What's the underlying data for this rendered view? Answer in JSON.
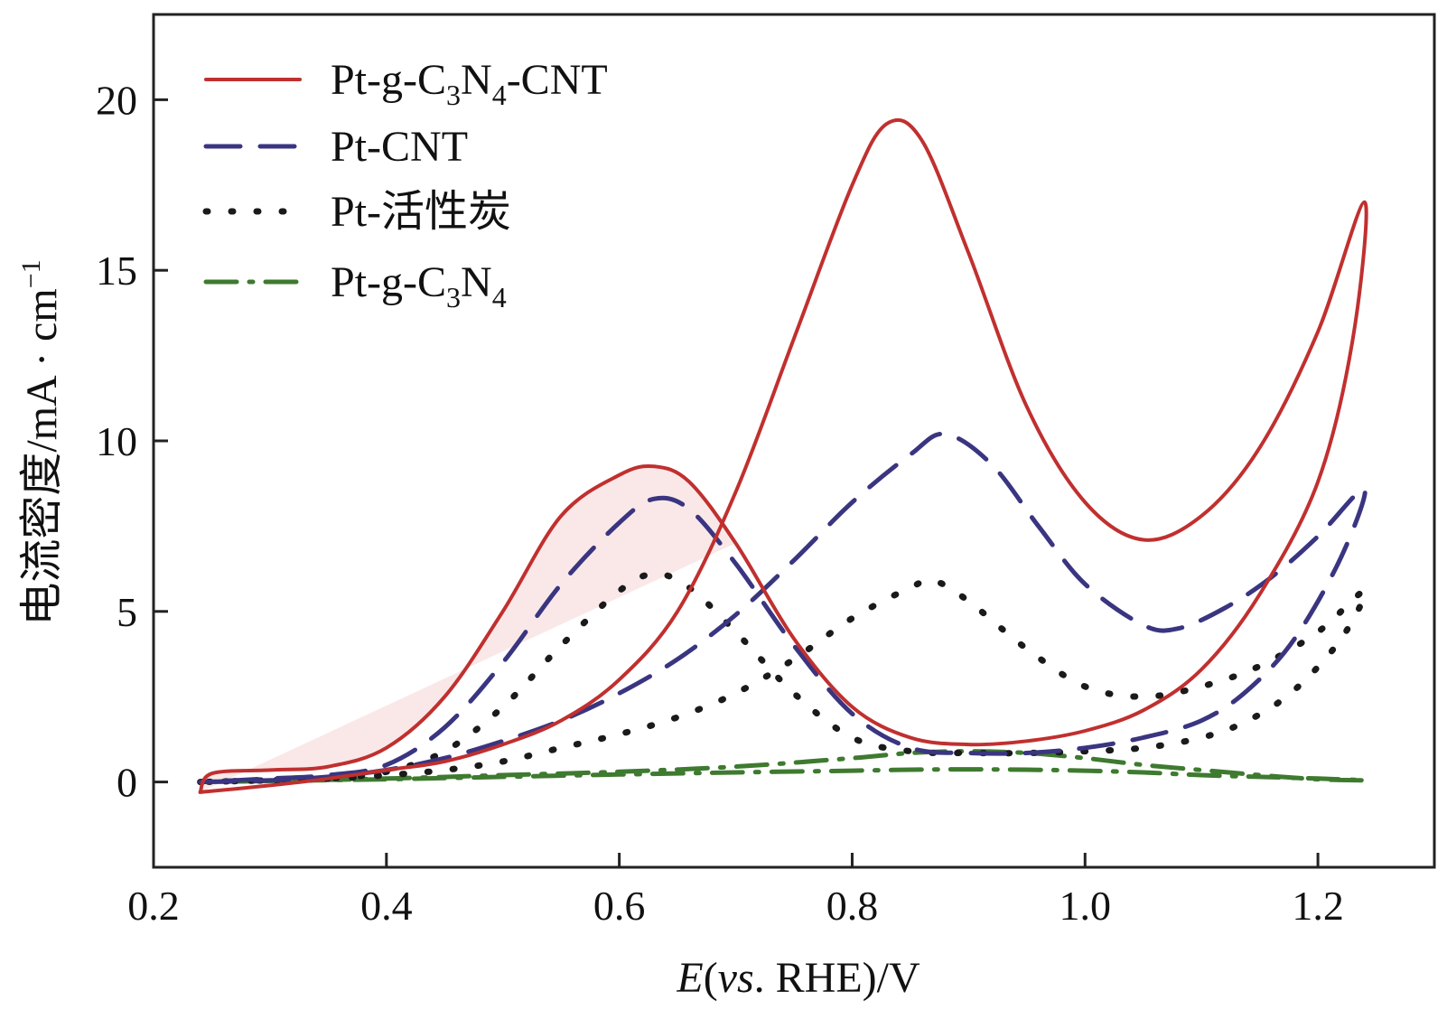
{
  "chart_data": {
    "type": "line",
    "title": "",
    "xlabel": {
      "italic": "E",
      "rest": "(",
      "italic2": "vs",
      "rest2": ". RHE)/V"
    },
    "ylabel": {
      "main": "电流密度/mA · cm",
      "sup": "−1"
    },
    "xlim": [
      0.2,
      1.3
    ],
    "ylim": [
      -2.5,
      22.5
    ],
    "x_ticks": [
      0.2,
      0.4,
      0.6,
      0.8,
      1.0,
      1.2
    ],
    "x_tick_labels": [
      "0.2",
      "0.4",
      "0.6",
      "0.8",
      "1.0",
      "1.2"
    ],
    "y_ticks": [
      0,
      5,
      10,
      15,
      20
    ],
    "y_tick_labels": [
      "0",
      "5",
      "10",
      "15",
      "20"
    ],
    "grid": false,
    "legend_position": "top-left",
    "series": [
      {
        "name": "Pt-g-C3N4-CNT",
        "label_parts": [
          [
            "Pt-g-C",
            ""
          ],
          [
            "3",
            "sub"
          ],
          [
            "N",
            ""
          ],
          [
            "4",
            "sub"
          ],
          [
            "-CNT",
            ""
          ]
        ],
        "color": "#c0302f",
        "style": "solid",
        "points": [
          [
            0.24,
            -0.3
          ],
          [
            0.3,
            -0.1
          ],
          [
            0.35,
            0.1
          ],
          [
            0.4,
            0.35
          ],
          [
            0.45,
            0.6
          ],
          [
            0.5,
            1.1
          ],
          [
            0.55,
            1.8
          ],
          [
            0.6,
            3.0
          ],
          [
            0.65,
            5.0
          ],
          [
            0.7,
            8.5
          ],
          [
            0.75,
            13.0
          ],
          [
            0.8,
            17.5
          ],
          [
            0.83,
            19.3
          ],
          [
            0.86,
            18.8
          ],
          [
            0.9,
            15.5
          ],
          [
            0.95,
            11.0
          ],
          [
            1.0,
            8.2
          ],
          [
            1.05,
            7.1
          ],
          [
            1.1,
            7.8
          ],
          [
            1.15,
            9.8
          ],
          [
            1.2,
            13.2
          ],
          [
            1.24,
            17.0
          ],
          [
            1.23,
            13.0
          ],
          [
            1.2,
            8.8
          ],
          [
            1.15,
            5.5
          ],
          [
            1.1,
            3.3
          ],
          [
            1.05,
            2.1
          ],
          [
            1.0,
            1.5
          ],
          [
            0.95,
            1.2
          ],
          [
            0.9,
            1.1
          ],
          [
            0.85,
            1.3
          ],
          [
            0.8,
            2.2
          ],
          [
            0.75,
            4.2
          ],
          [
            0.7,
            7.0
          ],
          [
            0.66,
            8.8
          ],
          [
            0.63,
            9.25
          ],
          [
            0.6,
            9.0
          ],
          [
            0.55,
            7.8
          ],
          [
            0.5,
            5.0
          ],
          [
            0.45,
            2.5
          ],
          [
            0.4,
            1.0
          ],
          [
            0.35,
            0.45
          ],
          [
            0.3,
            0.35
          ],
          [
            0.25,
            0.25
          ],
          [
            0.24,
            -0.3
          ]
        ]
      },
      {
        "name": "Pt-CNT",
        "label_parts": [
          [
            "Pt-CNT",
            ""
          ]
        ],
        "color": "#3a3580",
        "style": "dashed",
        "points": [
          [
            0.24,
            0.0
          ],
          [
            0.3,
            0.05
          ],
          [
            0.35,
            0.15
          ],
          [
            0.4,
            0.35
          ],
          [
            0.45,
            0.7
          ],
          [
            0.5,
            1.2
          ],
          [
            0.55,
            1.8
          ],
          [
            0.6,
            2.6
          ],
          [
            0.65,
            3.6
          ],
          [
            0.7,
            4.9
          ],
          [
            0.75,
            6.5
          ],
          [
            0.8,
            8.2
          ],
          [
            0.85,
            9.6
          ],
          [
            0.88,
            10.2
          ],
          [
            0.92,
            9.3
          ],
          [
            0.96,
            7.5
          ],
          [
            1.0,
            5.8
          ],
          [
            1.05,
            4.6
          ],
          [
            1.08,
            4.5
          ],
          [
            1.12,
            5.1
          ],
          [
            1.16,
            6.0
          ],
          [
            1.2,
            7.2
          ],
          [
            1.24,
            8.6
          ],
          [
            1.22,
            6.6
          ],
          [
            1.18,
            4.2
          ],
          [
            1.14,
            2.7
          ],
          [
            1.1,
            1.8
          ],
          [
            1.05,
            1.3
          ],
          [
            1.0,
            1.0
          ],
          [
            0.95,
            0.85
          ],
          [
            0.9,
            0.85
          ],
          [
            0.85,
            1.0
          ],
          [
            0.8,
            2.0
          ],
          [
            0.75,
            4.0
          ],
          [
            0.7,
            6.4
          ],
          [
            0.66,
            8.0
          ],
          [
            0.63,
            8.3
          ],
          [
            0.6,
            7.6
          ],
          [
            0.55,
            5.8
          ],
          [
            0.5,
            3.5
          ],
          [
            0.45,
            1.6
          ],
          [
            0.4,
            0.5
          ],
          [
            0.35,
            0.2
          ],
          [
            0.3,
            0.1
          ],
          [
            0.24,
            0.0
          ]
        ]
      },
      {
        "name": "Pt-活性炭",
        "label_parts": [
          [
            "Pt-活性炭",
            ""
          ]
        ],
        "color": "#1a1a1a",
        "style": "dotted",
        "points": [
          [
            0.24,
            0.0
          ],
          [
            0.3,
            0.05
          ],
          [
            0.35,
            0.1
          ],
          [
            0.4,
            0.2
          ],
          [
            0.45,
            0.35
          ],
          [
            0.5,
            0.6
          ],
          [
            0.55,
            1.0
          ],
          [
            0.6,
            1.4
          ],
          [
            0.65,
            1.9
          ],
          [
            0.7,
            2.6
          ],
          [
            0.75,
            3.6
          ],
          [
            0.8,
            4.8
          ],
          [
            0.85,
            5.7
          ],
          [
            0.87,
            5.9
          ],
          [
            0.9,
            5.3
          ],
          [
            0.95,
            3.9
          ],
          [
            1.0,
            2.8
          ],
          [
            1.05,
            2.5
          ],
          [
            1.1,
            2.8
          ],
          [
            1.15,
            3.4
          ],
          [
            1.2,
            4.4
          ],
          [
            1.24,
            5.6
          ],
          [
            1.22,
            4.2
          ],
          [
            1.18,
            2.7
          ],
          [
            1.14,
            1.8
          ],
          [
            1.1,
            1.3
          ],
          [
            1.05,
            1.0
          ],
          [
            1.0,
            0.9
          ],
          [
            0.95,
            0.85
          ],
          [
            0.9,
            0.85
          ],
          [
            0.85,
            0.9
          ],
          [
            0.8,
            1.3
          ],
          [
            0.75,
            2.6
          ],
          [
            0.7,
            4.4
          ],
          [
            0.66,
            5.7
          ],
          [
            0.63,
            6.1
          ],
          [
            0.6,
            5.6
          ],
          [
            0.55,
            4.0
          ],
          [
            0.5,
            2.2
          ],
          [
            0.45,
            0.9
          ],
          [
            0.4,
            0.3
          ],
          [
            0.35,
            0.1
          ],
          [
            0.3,
            0.05
          ],
          [
            0.24,
            0.0
          ]
        ]
      },
      {
        "name": "Pt-g-C3N4",
        "label_parts": [
          [
            "Pt-g-C",
            ""
          ],
          [
            "3",
            "sub"
          ],
          [
            "N",
            ""
          ],
          [
            "4",
            "sub"
          ]
        ],
        "color": "#3e7a2f",
        "style": "dashdot",
        "points": [
          [
            0.24,
            0.0
          ],
          [
            0.3,
            0.03
          ],
          [
            0.4,
            0.1
          ],
          [
            0.5,
            0.2
          ],
          [
            0.6,
            0.3
          ],
          [
            0.7,
            0.45
          ],
          [
            0.8,
            0.7
          ],
          [
            0.85,
            0.85
          ],
          [
            0.9,
            0.9
          ],
          [
            0.95,
            0.85
          ],
          [
            1.0,
            0.7
          ],
          [
            1.05,
            0.5
          ],
          [
            1.1,
            0.35
          ],
          [
            1.15,
            0.2
          ],
          [
            1.2,
            0.08
          ],
          [
            1.24,
            0.05
          ],
          [
            1.2,
            0.1
          ],
          [
            1.15,
            0.15
          ],
          [
            1.1,
            0.2
          ],
          [
            1.05,
            0.28
          ],
          [
            1.0,
            0.33
          ],
          [
            0.95,
            0.36
          ],
          [
            0.9,
            0.37
          ],
          [
            0.85,
            0.36
          ],
          [
            0.8,
            0.33
          ],
          [
            0.7,
            0.28
          ],
          [
            0.6,
            0.22
          ],
          [
            0.5,
            0.15
          ],
          [
            0.4,
            0.08
          ],
          [
            0.3,
            0.03
          ],
          [
            0.24,
            0.0
          ]
        ]
      }
    ]
  }
}
